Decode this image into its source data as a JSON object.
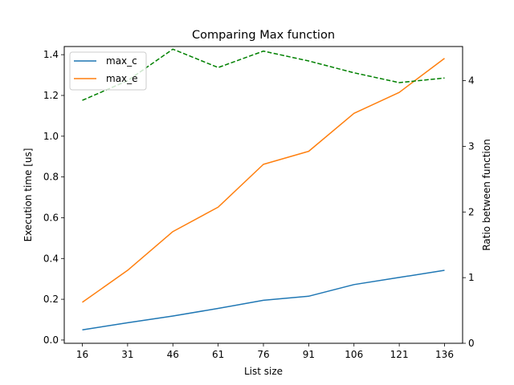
{
  "chart_data": {
    "type": "line",
    "title": "Comparing Max function",
    "xlabel": "List size",
    "ylabel": "Execution time [us]",
    "y2label": "Ratio between function",
    "x": [
      16,
      31,
      46,
      61,
      76,
      91,
      106,
      121,
      136
    ],
    "x_ticks": [
      "16",
      "31",
      "46",
      "61",
      "76",
      "91",
      "106",
      "121",
      "136"
    ],
    "ylim": [
      -0.016,
      1.44
    ],
    "y_ticks": [
      "0.0",
      "0.2",
      "0.4",
      "0.6",
      "0.8",
      "1.0",
      "1.2",
      "1.4"
    ],
    "y2lim": [
      0,
      4.52
    ],
    "y2_ticks": [
      "0",
      "1",
      "2",
      "3",
      "4"
    ],
    "grid": false,
    "legend_position": "upper-left",
    "series": [
      {
        "name": "max_c",
        "axis": "left",
        "color": "#1f77b4",
        "style": "solid",
        "values": [
          0.05,
          0.085,
          0.118,
          0.155,
          0.195,
          0.215,
          0.272,
          0.307,
          0.342
        ]
      },
      {
        "name": "max_e",
        "axis": "left",
        "color": "#ff7f0e",
        "style": "solid",
        "values": [
          0.185,
          0.342,
          0.532,
          0.652,
          0.862,
          0.926,
          1.112,
          1.215,
          1.382
        ]
      },
      {
        "axis": "right",
        "color": "#008000",
        "style": "dashed",
        "values": [
          3.7,
          4.0,
          4.48,
          4.2,
          4.45,
          4.3,
          4.12,
          3.97,
          4.04
        ]
      }
    ]
  }
}
